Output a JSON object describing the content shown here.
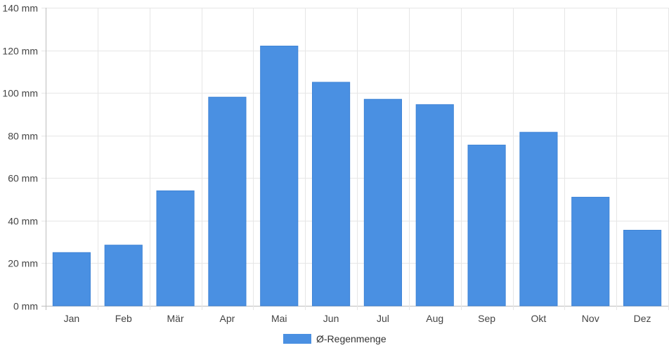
{
  "chart_data": {
    "type": "bar",
    "categories": [
      "Jan",
      "Feb",
      "Mär",
      "Apr",
      "Mai",
      "Jun",
      "Jul",
      "Aug",
      "Sep",
      "Okt",
      "Nov",
      "Dez"
    ],
    "series": [
      {
        "name": "Ø-Regenmenge",
        "values": [
          25,
          28.5,
          54,
          98,
          122,
          105,
          97,
          94.5,
          75.5,
          81.5,
          51,
          35.5
        ],
        "color": "#4a90e2"
      }
    ],
    "yticks": [
      "0 mm",
      "20 mm",
      "40 mm",
      "60 mm",
      "80 mm",
      "100 mm",
      "120 mm",
      "140 mm"
    ],
    "ylim": [
      0,
      140
    ],
    "grid": true,
    "legend_position": "bottom-center"
  }
}
